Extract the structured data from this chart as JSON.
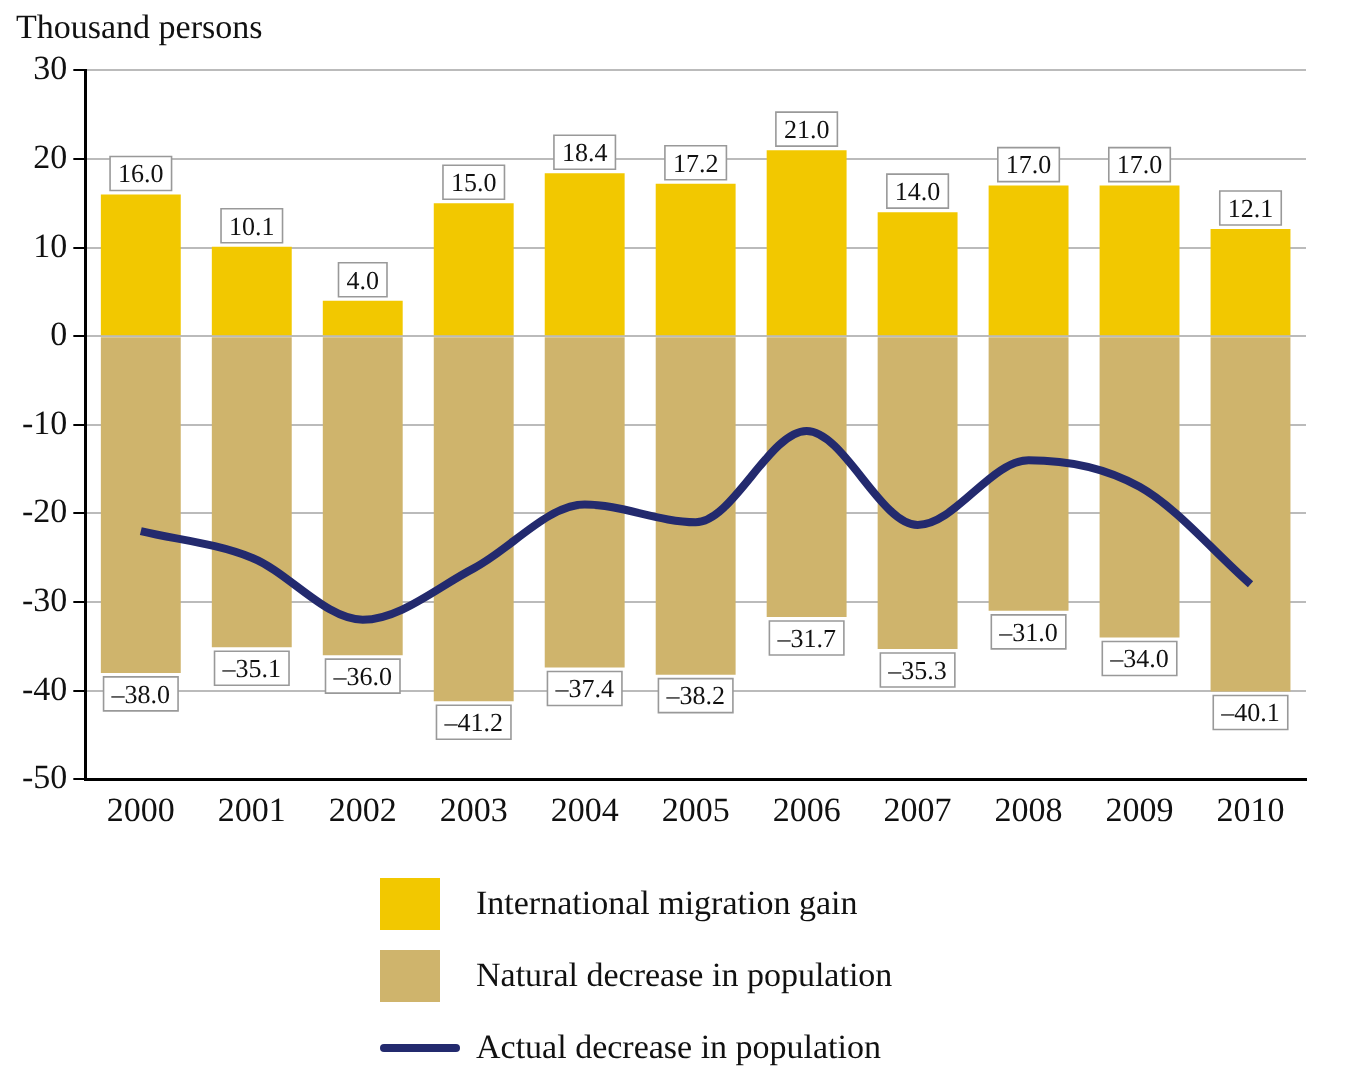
{
  "chart_data": {
    "type": "bar",
    "ylabel": "Thousand persons",
    "categories": [
      "2000",
      "2001",
      "2002",
      "2003",
      "2004",
      "2005",
      "2006",
      "2007",
      "2008",
      "2009",
      "2010"
    ],
    "stacked": true,
    "ylim": [
      -50,
      30
    ],
    "yticks": [
      -50,
      -40,
      -30,
      -20,
      -10,
      0,
      10,
      20,
      30
    ],
    "grid": "y",
    "legend": "bottom",
    "series": [
      {
        "name": "International migration gain",
        "color": "#f2c800",
        "values": [
          16.0,
          10.1,
          4.0,
          15.0,
          18.4,
          17.2,
          21.0,
          14.0,
          17.0,
          17.0,
          12.1
        ],
        "value_labels": [
          "16.0",
          "10.1",
          "4.0",
          "15.0",
          "18.4",
          "17.2",
          "21.0",
          "14.0",
          "17.0",
          "17.0",
          "12.1"
        ]
      },
      {
        "name": "Natural decrease in population",
        "color": "#cfb46c",
        "values": [
          -38.0,
          -35.1,
          -36.0,
          -41.2,
          -37.4,
          -38.2,
          -31.7,
          -35.3,
          -31.0,
          -34.0,
          -40.1
        ],
        "value_labels": [
          "–38.0",
          "–35.1",
          "–36.0",
          "–41.2",
          "–37.4",
          "–38.2",
          "–31.7",
          "–35.3",
          "–31.0",
          "–34.0",
          "–40.1"
        ]
      },
      {
        "name": "Actual decrease in population",
        "type": "line",
        "color": "#232a6e",
        "values": [
          -22.0,
          -25.0,
          -32.0,
          -26.2,
          -19.0,
          -21.0,
          -10.7,
          -21.3,
          -14.0,
          -17.0,
          -28.0
        ]
      }
    ]
  }
}
